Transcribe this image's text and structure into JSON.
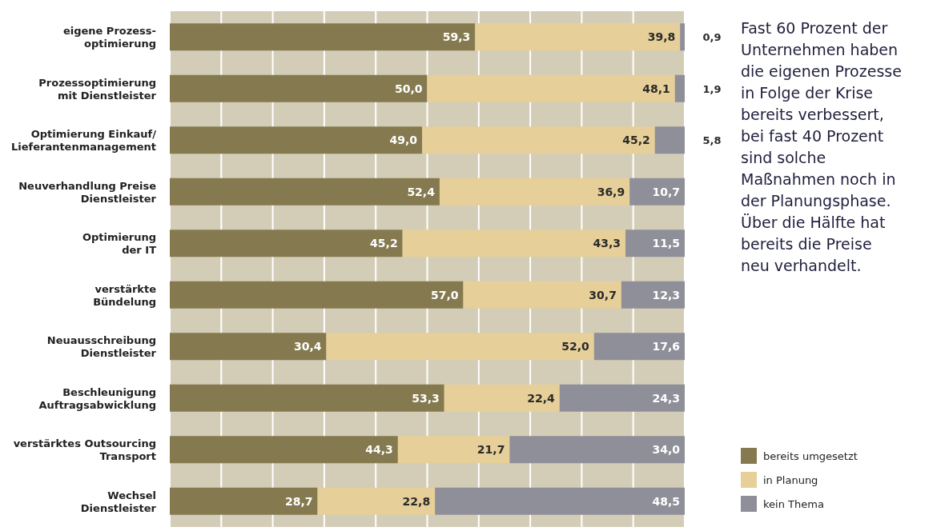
{
  "chart_data": {
    "type": "bar",
    "orientation": "horizontal",
    "stacked": true,
    "categories": [
      "eigene Prozess-\noptimierung",
      "Prozessoptimierung\nmit Dienstleister",
      "Optimierung Einkauf/\nLieferantenmanagement",
      "Neuverhandlung Preise\nDienstleister",
      "Optimierung\nder IT",
      "verstärkte\nBündelung",
      "Neuausschreibung\nDienstleister",
      "Beschleunigung\nAuftragsabwicklung",
      "verstärktes Outsourcing\nTransport",
      "Wechsel\nDienstleister"
    ],
    "series": [
      {
        "name": "bereits umgesetzt",
        "color": "#857a4f",
        "values": [
          59.3,
          50.0,
          49.0,
          52.4,
          45.2,
          57.0,
          30.4,
          53.3,
          44.3,
          28.7
        ],
        "value_labels": [
          "59,3",
          "50,0",
          "49,0",
          "52,4",
          "45,2",
          "57,0",
          "30,4",
          "53,3",
          "44,3",
          "28,7"
        ]
      },
      {
        "name": "in Planung",
        "color": "#e6cf98",
        "values": [
          39.8,
          48.1,
          45.2,
          36.9,
          43.3,
          30.7,
          52.0,
          22.4,
          21.7,
          22.8
        ],
        "value_labels": [
          "39,8",
          "48,1",
          "45,2",
          "36,9",
          "43,3",
          "30,7",
          "52,0",
          "22,4",
          "21,7",
          "22,8"
        ]
      },
      {
        "name": "kein Thema",
        "color": "#8e8f98",
        "values": [
          0.9,
          1.9,
          5.8,
          10.7,
          11.5,
          12.3,
          17.6,
          24.3,
          34.0,
          48.5
        ],
        "value_labels": [
          "0,9",
          "1,9",
          "5,8",
          "10,7",
          "11,5",
          "12,3",
          "17,6",
          "24,3",
          "34,0",
          "48,5"
        ]
      }
    ],
    "xlim": [
      0,
      100
    ],
    "xticks": [
      {
        "value": 0,
        "label": null
      },
      {
        "value": 10,
        "label": null
      },
      {
        "value": 20,
        "label": null
      },
      {
        "value": 30,
        "label": null
      },
      {
        "value": 40,
        "label": null
      },
      {
        "value": 50,
        "label": null
      },
      {
        "value": 60,
        "label": null
      },
      {
        "value": 70,
        "label": null
      },
      {
        "value": 80,
        "label": null
      },
      {
        "value": 90,
        "label": null
      },
      {
        "value": 100,
        "label": null
      }
    ],
    "tick_labels": "y",
    "grid": "x",
    "legend": "bottom right",
    "annotations": [
      "Fast 60 Prozent der Unternehmen haben die eigenen Prozesse in Folge der Krise bereits verbessert, bei fast 40 Prozent sind solche Maßnahmen noch in der Planungsphase. Über die Hälfte hat bereits die Preise neu verhandelt."
    ]
  }
}
